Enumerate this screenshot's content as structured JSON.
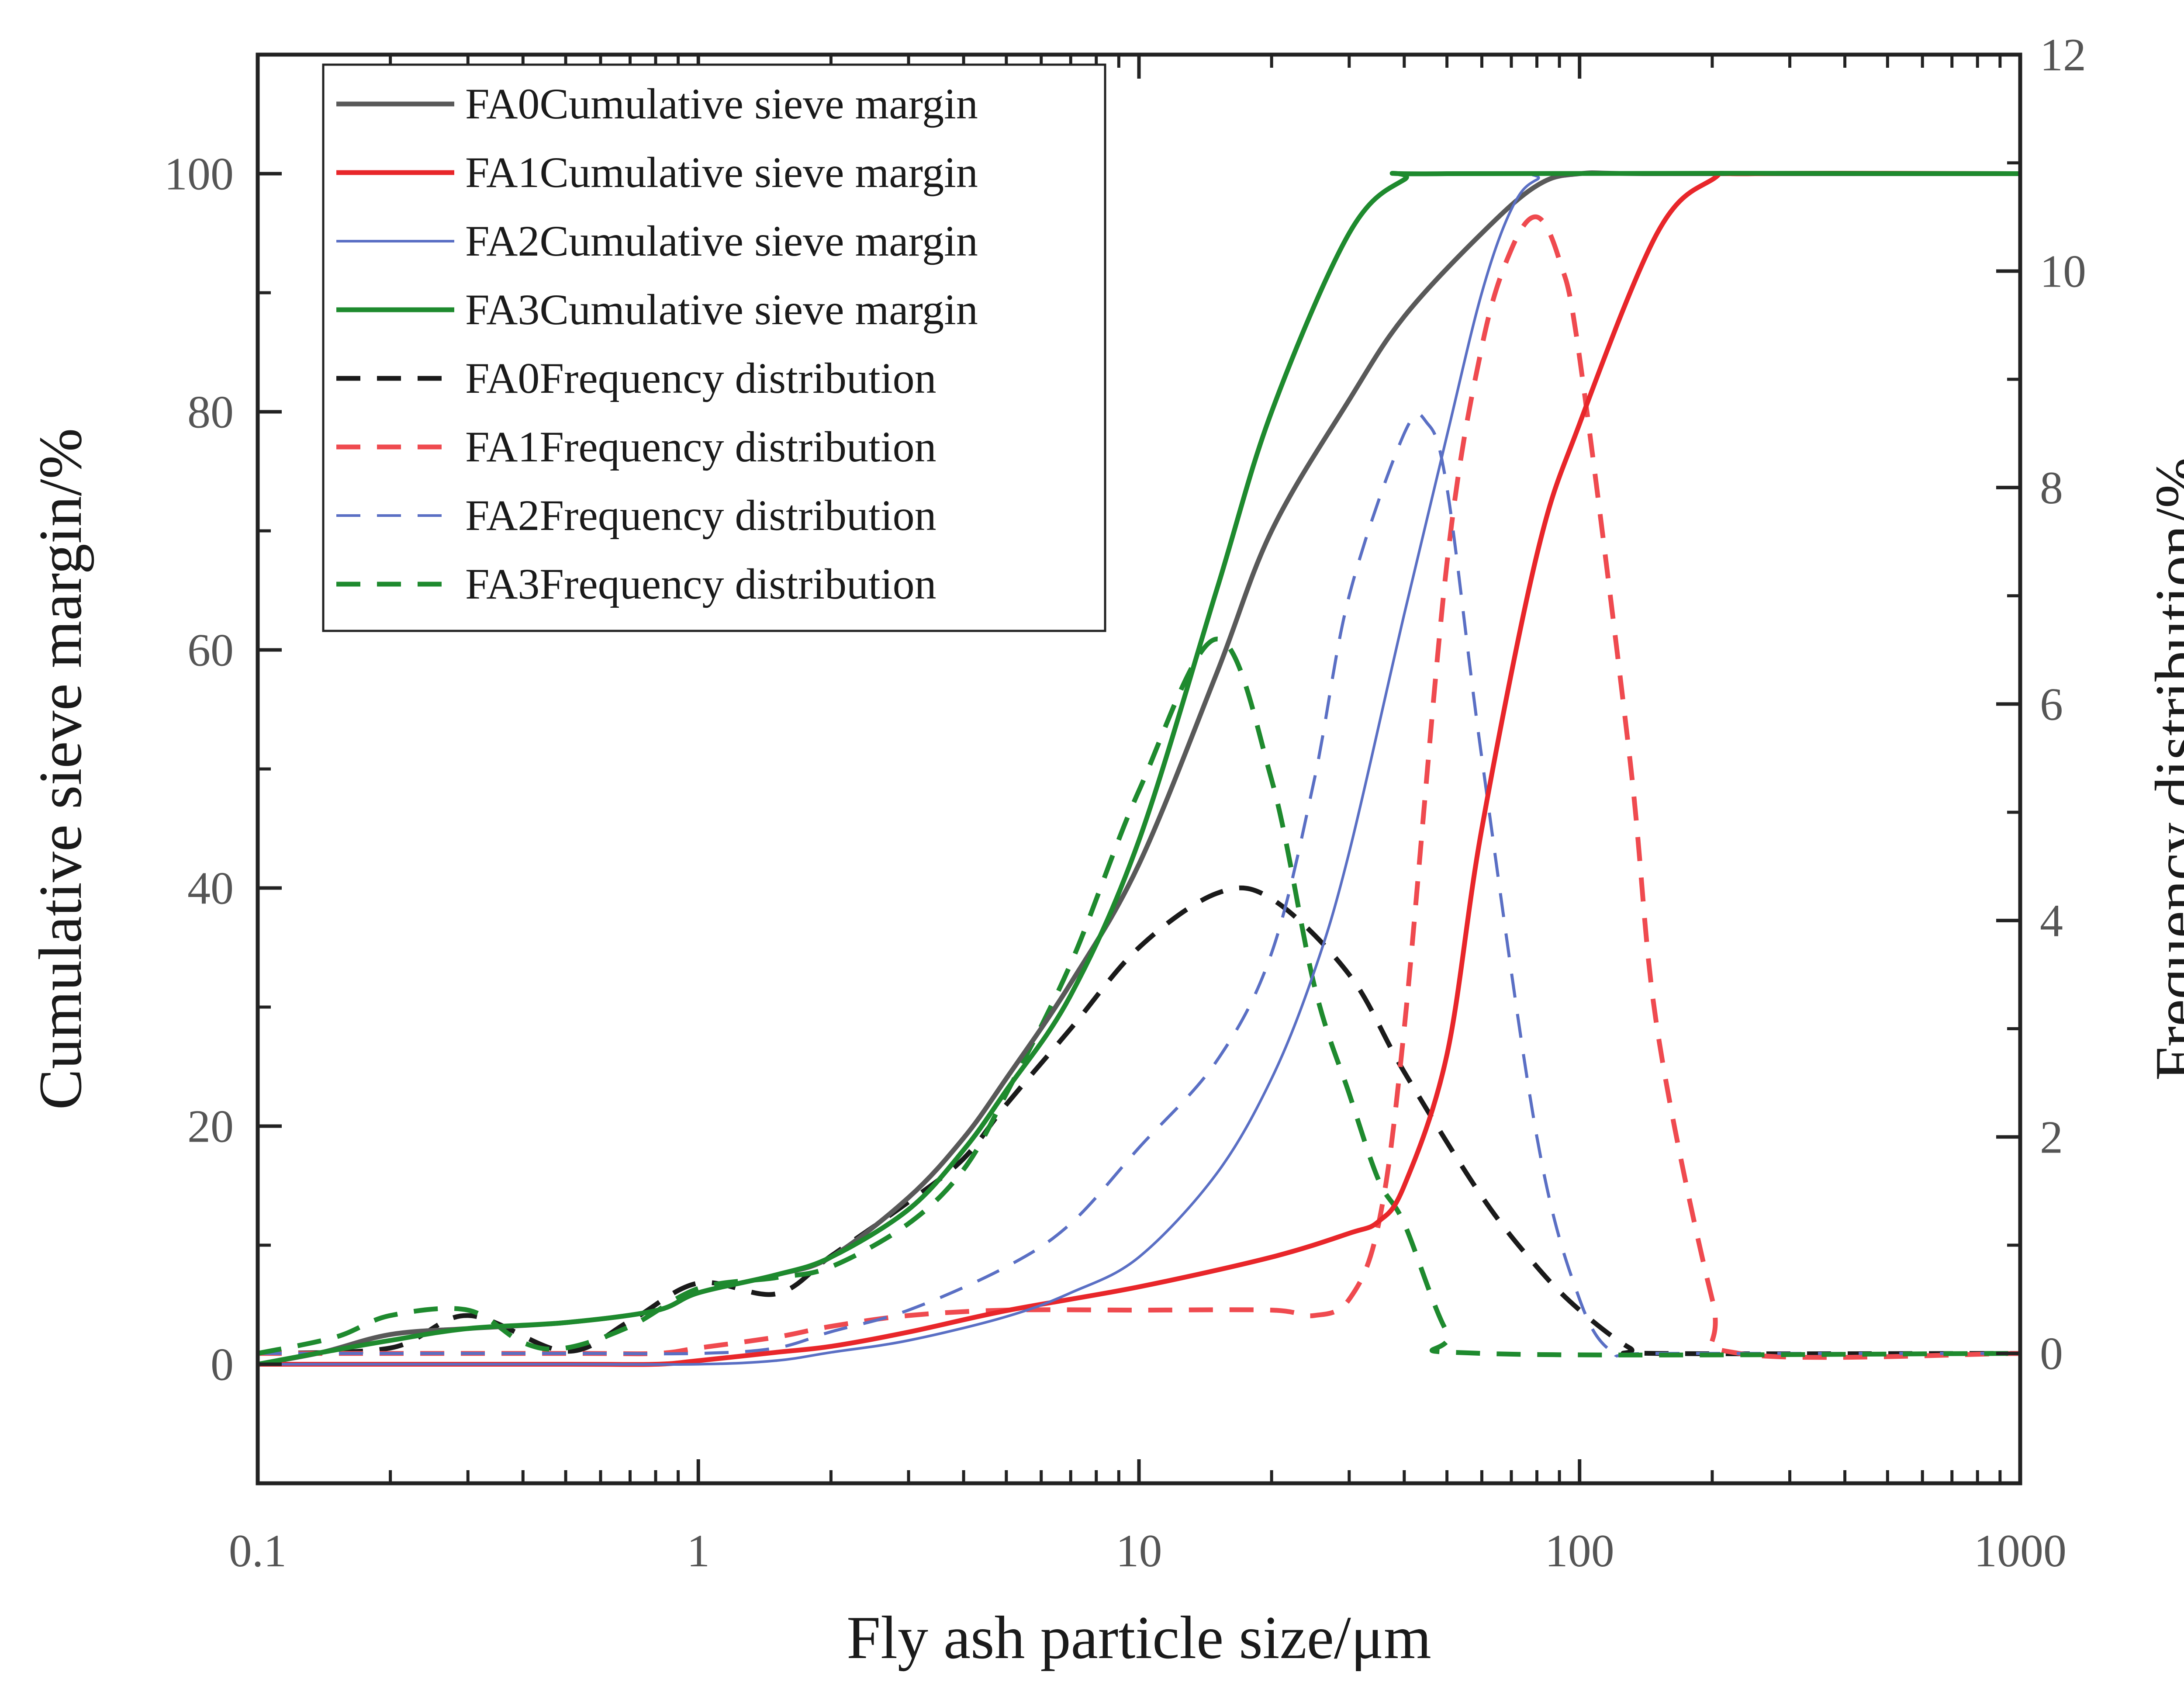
{
  "chart_data": {
    "type": "line",
    "title": "",
    "xlabel": "Fly ash particle size/μm",
    "ylabel": "Cumulative sieve margin/%",
    "y2label": "Frequency distribution/%",
    "xscale": "log",
    "xlim": [
      0.1,
      1000
    ],
    "ylim": [
      -10,
      110
    ],
    "y2lim": [
      -1.2,
      12
    ],
    "x_ticks": [
      0.1,
      1,
      10,
      100,
      1000
    ],
    "x_tick_labels": [
      "0.1",
      "1",
      "10",
      "100",
      "1000"
    ],
    "y_ticks": [
      0,
      20,
      40,
      60,
      80,
      100
    ],
    "y_tick_labels": [
      "0",
      "20",
      "40",
      "60",
      "80",
      "100"
    ],
    "y2_ticks": [
      0,
      2,
      4,
      6,
      8,
      10,
      12
    ],
    "y2_tick_labels": [
      "0",
      "2",
      "4",
      "6",
      "8",
      "10",
      "12"
    ],
    "legend_position": "top-left",
    "grid": false,
    "series": [
      {
        "name": "FA0Cumulative sieve margin",
        "axis": "left",
        "style": "solid",
        "color": "#595959",
        "x": [
          0.1,
          0.14,
          0.2,
          0.3,
          0.5,
          0.8,
          1,
          1.5,
          2,
          3,
          4,
          5,
          7,
          10,
          15,
          20,
          30,
          40,
          60,
          80,
          100,
          150,
          1000
        ],
        "y": [
          0,
          1,
          2.5,
          3,
          3.5,
          4.5,
          6,
          7.5,
          9,
          14,
          19,
          24,
          32,
          42,
          58,
          70,
          81,
          88,
          95,
          99,
          100,
          100,
          100
        ]
      },
      {
        "name": "FA1Cumulative sieve margin",
        "axis": "left",
        "style": "solid",
        "color": "#e8262a",
        "x": [
          0.1,
          0.5,
          0.8,
          1,
          1.5,
          2,
          3,
          5,
          10,
          20,
          30,
          35,
          40,
          50,
          60,
          80,
          100,
          150,
          200,
          250,
          1000
        ],
        "y": [
          0,
          0,
          0,
          0.3,
          1,
          1.5,
          2.7,
          4.5,
          6.5,
          9,
          11,
          12,
          15,
          26,
          45,
          68,
          79,
          95,
          99.5,
          100,
          100
        ]
      },
      {
        "name": "FA2Cumulative sieve margin",
        "axis": "left",
        "style": "solid",
        "color": "#5a6fc4",
        "x": [
          0.1,
          0.5,
          1,
          1.5,
          2,
          3,
          5,
          7,
          10,
          15,
          20,
          25,
          30,
          40,
          50,
          60,
          70,
          80,
          100,
          1000
        ],
        "y": [
          0,
          0,
          0,
          0.3,
          1,
          2,
          4,
          6,
          9,
          16,
          24,
          33,
          43,
          63,
          78,
          90,
          97,
          99.5,
          100,
          100
        ]
      },
      {
        "name": "FA3Cumulative sieve margin",
        "axis": "left",
        "style": "solid",
        "color": "#1e8a2e",
        "x": [
          0.1,
          0.14,
          0.2,
          0.3,
          0.5,
          0.8,
          1,
          1.5,
          2,
          3,
          4,
          5,
          7,
          10,
          15,
          20,
          30,
          40,
          50,
          1000
        ],
        "y": [
          0,
          1,
          2,
          3,
          3.5,
          4.5,
          6,
          7.5,
          9,
          13,
          18,
          23,
          31,
          44,
          65,
          80,
          95,
          99.5,
          100,
          100
        ]
      },
      {
        "name": "FA0Frequency distribution",
        "axis": "right",
        "style": "dashed",
        "color": "#1a1a1a",
        "x": [
          0.1,
          0.2,
          0.3,
          0.5,
          0.7,
          1,
          1.5,
          2,
          3,
          4,
          5,
          7,
          10,
          15,
          20,
          30,
          40,
          60,
          80,
          100,
          130,
          150,
          1000
        ],
        "y": [
          0,
          0.05,
          0.35,
          0.02,
          0.3,
          0.65,
          0.55,
          0.9,
          1.4,
          1.8,
          2.3,
          3.0,
          3.75,
          4.25,
          4.2,
          3.5,
          2.6,
          1.45,
          0.8,
          0.4,
          0.05,
          0,
          0
        ]
      },
      {
        "name": "FA1Frequency distribution",
        "axis": "right",
        "style": "dashed",
        "color": "#ef4a4f",
        "x": [
          0.1,
          0.5,
          0.8,
          1,
          1.5,
          2,
          3,
          5,
          10,
          20,
          25,
          30,
          35,
          40,
          50,
          60,
          70,
          80,
          90,
          100,
          130,
          150,
          200,
          230,
          1000
        ],
        "y": [
          0,
          0,
          0,
          0.05,
          0.15,
          0.25,
          0.35,
          0.4,
          0.4,
          0.4,
          0.35,
          0.5,
          1.2,
          3.0,
          7.3,
          9.3,
          10.2,
          10.5,
          10.1,
          9.2,
          5.5,
          3.0,
          0.5,
          0,
          0
        ]
      },
      {
        "name": "FA2Frequency distribution",
        "axis": "right",
        "style": "dashed",
        "color": "#5a6fc4",
        "x": [
          0.1,
          0.5,
          1,
          1.5,
          2,
          3,
          5,
          7,
          10,
          15,
          20,
          25,
          30,
          40,
          45,
          50,
          60,
          80,
          100,
          120,
          150,
          1000
        ],
        "y": [
          0,
          0,
          0,
          0.05,
          0.2,
          0.4,
          0.8,
          1.2,
          1.9,
          2.7,
          3.7,
          5.3,
          7.0,
          8.5,
          8.6,
          8.0,
          5.5,
          2.0,
          0.5,
          0,
          0,
          0
        ]
      },
      {
        "name": "FA3Frequency distribution",
        "axis": "right",
        "style": "dashed",
        "color": "#1e8a2e",
        "x": [
          0.1,
          0.15,
          0.2,
          0.3,
          0.4,
          0.5,
          0.7,
          1,
          1.5,
          2,
          3,
          4,
          5,
          7,
          10,
          15,
          20,
          25,
          30,
          35,
          40,
          50,
          60,
          1000
        ],
        "y": [
          0,
          0.15,
          0.35,
          0.4,
          0.1,
          0.05,
          0.25,
          0.6,
          0.7,
          0.8,
          1.2,
          1.7,
          2.4,
          3.6,
          5.2,
          6.6,
          5.3,
          3.4,
          2.4,
          1.6,
          1.2,
          0.2,
          0,
          0
        ]
      }
    ]
  }
}
